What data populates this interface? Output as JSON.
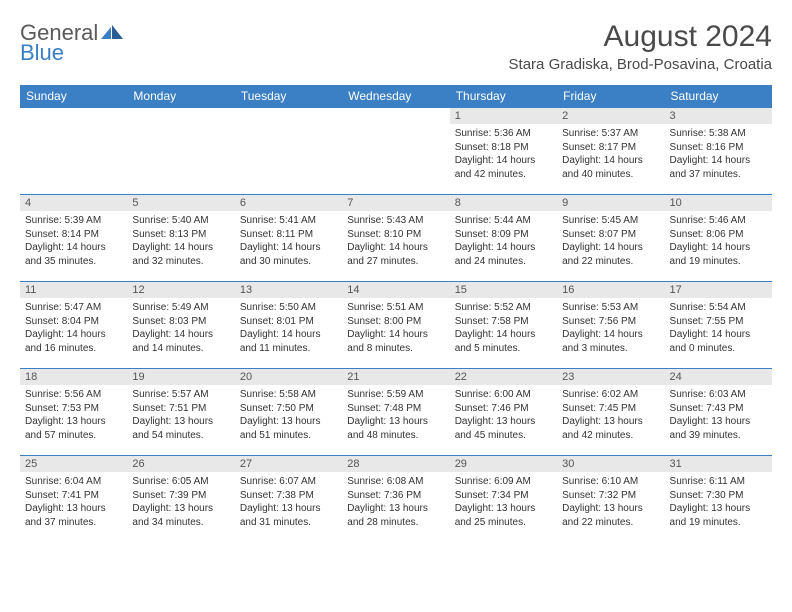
{
  "logo": {
    "text1": "General",
    "text2": "Blue"
  },
  "title": "August 2024",
  "location": "Stara Gradiska, Brod-Posavina, Croatia",
  "colors": {
    "headerBg": "#3b7fc4",
    "headerText": "#ffffff",
    "dayBg": "#e8e8e8",
    "border": "#3b7fc4"
  },
  "weekdays": [
    "Sunday",
    "Monday",
    "Tuesday",
    "Wednesday",
    "Thursday",
    "Friday",
    "Saturday"
  ],
  "weeks": [
    [
      {
        "n": "",
        "sr": "",
        "ss": "",
        "dl": ""
      },
      {
        "n": "",
        "sr": "",
        "ss": "",
        "dl": ""
      },
      {
        "n": "",
        "sr": "",
        "ss": "",
        "dl": ""
      },
      {
        "n": "",
        "sr": "",
        "ss": "",
        "dl": ""
      },
      {
        "n": "1",
        "sr": "Sunrise: 5:36 AM",
        "ss": "Sunset: 8:18 PM",
        "dl": "Daylight: 14 hours and 42 minutes."
      },
      {
        "n": "2",
        "sr": "Sunrise: 5:37 AM",
        "ss": "Sunset: 8:17 PM",
        "dl": "Daylight: 14 hours and 40 minutes."
      },
      {
        "n": "3",
        "sr": "Sunrise: 5:38 AM",
        "ss": "Sunset: 8:16 PM",
        "dl": "Daylight: 14 hours and 37 minutes."
      }
    ],
    [
      {
        "n": "4",
        "sr": "Sunrise: 5:39 AM",
        "ss": "Sunset: 8:14 PM",
        "dl": "Daylight: 14 hours and 35 minutes."
      },
      {
        "n": "5",
        "sr": "Sunrise: 5:40 AM",
        "ss": "Sunset: 8:13 PM",
        "dl": "Daylight: 14 hours and 32 minutes."
      },
      {
        "n": "6",
        "sr": "Sunrise: 5:41 AM",
        "ss": "Sunset: 8:11 PM",
        "dl": "Daylight: 14 hours and 30 minutes."
      },
      {
        "n": "7",
        "sr": "Sunrise: 5:43 AM",
        "ss": "Sunset: 8:10 PM",
        "dl": "Daylight: 14 hours and 27 minutes."
      },
      {
        "n": "8",
        "sr": "Sunrise: 5:44 AM",
        "ss": "Sunset: 8:09 PM",
        "dl": "Daylight: 14 hours and 24 minutes."
      },
      {
        "n": "9",
        "sr": "Sunrise: 5:45 AM",
        "ss": "Sunset: 8:07 PM",
        "dl": "Daylight: 14 hours and 22 minutes."
      },
      {
        "n": "10",
        "sr": "Sunrise: 5:46 AM",
        "ss": "Sunset: 8:06 PM",
        "dl": "Daylight: 14 hours and 19 minutes."
      }
    ],
    [
      {
        "n": "11",
        "sr": "Sunrise: 5:47 AM",
        "ss": "Sunset: 8:04 PM",
        "dl": "Daylight: 14 hours and 16 minutes."
      },
      {
        "n": "12",
        "sr": "Sunrise: 5:49 AM",
        "ss": "Sunset: 8:03 PM",
        "dl": "Daylight: 14 hours and 14 minutes."
      },
      {
        "n": "13",
        "sr": "Sunrise: 5:50 AM",
        "ss": "Sunset: 8:01 PM",
        "dl": "Daylight: 14 hours and 11 minutes."
      },
      {
        "n": "14",
        "sr": "Sunrise: 5:51 AM",
        "ss": "Sunset: 8:00 PM",
        "dl": "Daylight: 14 hours and 8 minutes."
      },
      {
        "n": "15",
        "sr": "Sunrise: 5:52 AM",
        "ss": "Sunset: 7:58 PM",
        "dl": "Daylight: 14 hours and 5 minutes."
      },
      {
        "n": "16",
        "sr": "Sunrise: 5:53 AM",
        "ss": "Sunset: 7:56 PM",
        "dl": "Daylight: 14 hours and 3 minutes."
      },
      {
        "n": "17",
        "sr": "Sunrise: 5:54 AM",
        "ss": "Sunset: 7:55 PM",
        "dl": "Daylight: 14 hours and 0 minutes."
      }
    ],
    [
      {
        "n": "18",
        "sr": "Sunrise: 5:56 AM",
        "ss": "Sunset: 7:53 PM",
        "dl": "Daylight: 13 hours and 57 minutes."
      },
      {
        "n": "19",
        "sr": "Sunrise: 5:57 AM",
        "ss": "Sunset: 7:51 PM",
        "dl": "Daylight: 13 hours and 54 minutes."
      },
      {
        "n": "20",
        "sr": "Sunrise: 5:58 AM",
        "ss": "Sunset: 7:50 PM",
        "dl": "Daylight: 13 hours and 51 minutes."
      },
      {
        "n": "21",
        "sr": "Sunrise: 5:59 AM",
        "ss": "Sunset: 7:48 PM",
        "dl": "Daylight: 13 hours and 48 minutes."
      },
      {
        "n": "22",
        "sr": "Sunrise: 6:00 AM",
        "ss": "Sunset: 7:46 PM",
        "dl": "Daylight: 13 hours and 45 minutes."
      },
      {
        "n": "23",
        "sr": "Sunrise: 6:02 AM",
        "ss": "Sunset: 7:45 PM",
        "dl": "Daylight: 13 hours and 42 minutes."
      },
      {
        "n": "24",
        "sr": "Sunrise: 6:03 AM",
        "ss": "Sunset: 7:43 PM",
        "dl": "Daylight: 13 hours and 39 minutes."
      }
    ],
    [
      {
        "n": "25",
        "sr": "Sunrise: 6:04 AM",
        "ss": "Sunset: 7:41 PM",
        "dl": "Daylight: 13 hours and 37 minutes."
      },
      {
        "n": "26",
        "sr": "Sunrise: 6:05 AM",
        "ss": "Sunset: 7:39 PM",
        "dl": "Daylight: 13 hours and 34 minutes."
      },
      {
        "n": "27",
        "sr": "Sunrise: 6:07 AM",
        "ss": "Sunset: 7:38 PM",
        "dl": "Daylight: 13 hours and 31 minutes."
      },
      {
        "n": "28",
        "sr": "Sunrise: 6:08 AM",
        "ss": "Sunset: 7:36 PM",
        "dl": "Daylight: 13 hours and 28 minutes."
      },
      {
        "n": "29",
        "sr": "Sunrise: 6:09 AM",
        "ss": "Sunset: 7:34 PM",
        "dl": "Daylight: 13 hours and 25 minutes."
      },
      {
        "n": "30",
        "sr": "Sunrise: 6:10 AM",
        "ss": "Sunset: 7:32 PM",
        "dl": "Daylight: 13 hours and 22 minutes."
      },
      {
        "n": "31",
        "sr": "Sunrise: 6:11 AM",
        "ss": "Sunset: 7:30 PM",
        "dl": "Daylight: 13 hours and 19 minutes."
      }
    ]
  ]
}
